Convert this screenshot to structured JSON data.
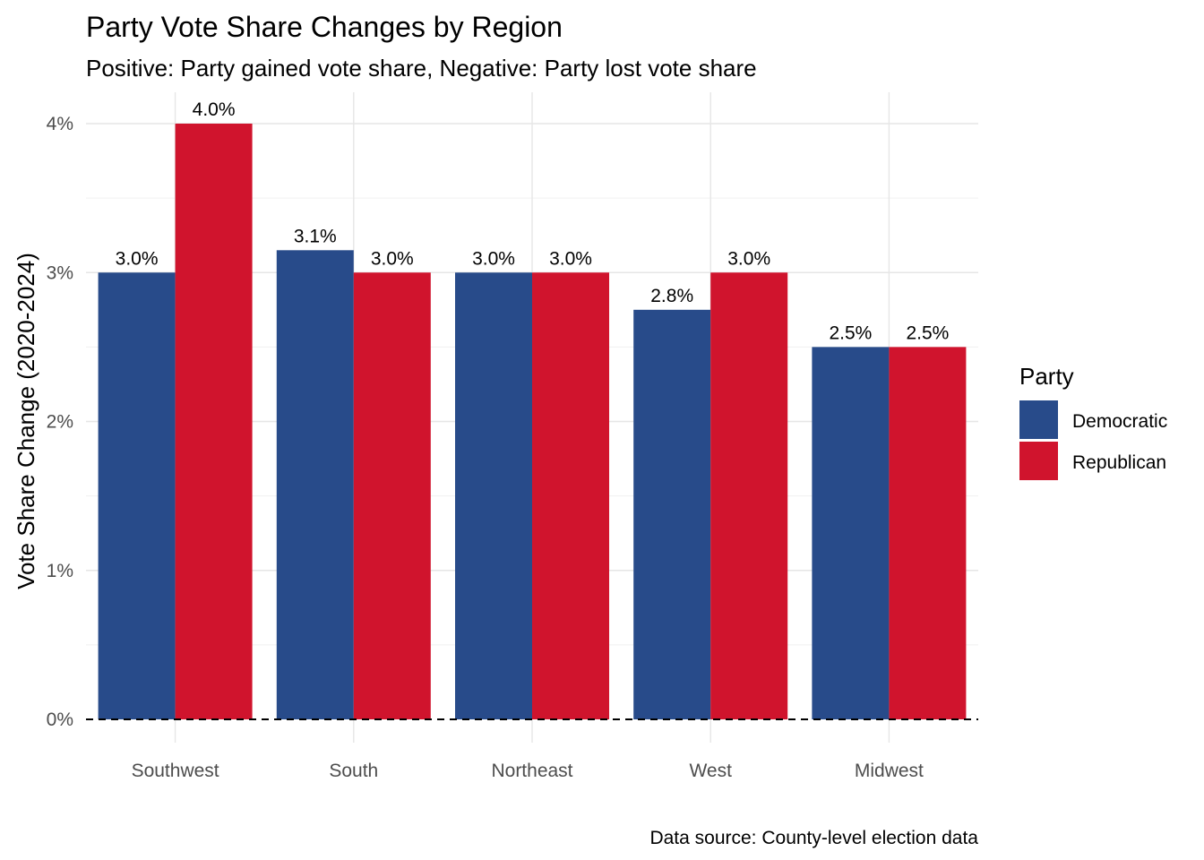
{
  "chart_data": {
    "type": "bar",
    "title": "Party Vote Share Changes by Region",
    "subtitle": "Positive: Party gained vote share, Negative: Party lost vote share",
    "xlabel": "",
    "ylabel": "Vote Share Change (2020-2024)",
    "caption": "Data source: County-level election data",
    "categories": [
      "Southwest",
      "South",
      "Northeast",
      "West",
      "Midwest"
    ],
    "series": [
      {
        "name": "Democratic",
        "color": "#284B8A",
        "values": [
          3.0,
          3.15,
          3.0,
          2.75,
          2.5
        ],
        "labels": [
          "3.0%",
          "3.1%",
          "3.0%",
          "2.8%",
          "2.5%"
        ]
      },
      {
        "name": "Republican",
        "color": "#D0142D",
        "values": [
          4.0,
          3.0,
          3.0,
          3.0,
          2.5
        ],
        "labels": [
          "4.0%",
          "3.0%",
          "3.0%",
          "3.0%",
          "2.5%"
        ]
      }
    ],
    "ylim": [
      0,
      4.2
    ],
    "yticks": [
      0,
      1,
      2,
      3,
      4
    ],
    "ytick_labels": [
      "0%",
      "1%",
      "2%",
      "3%",
      "4%"
    ],
    "grid": true,
    "reference_line": {
      "value": 0,
      "style": "dashed"
    },
    "legend": {
      "title": "Party",
      "position": "right"
    }
  }
}
